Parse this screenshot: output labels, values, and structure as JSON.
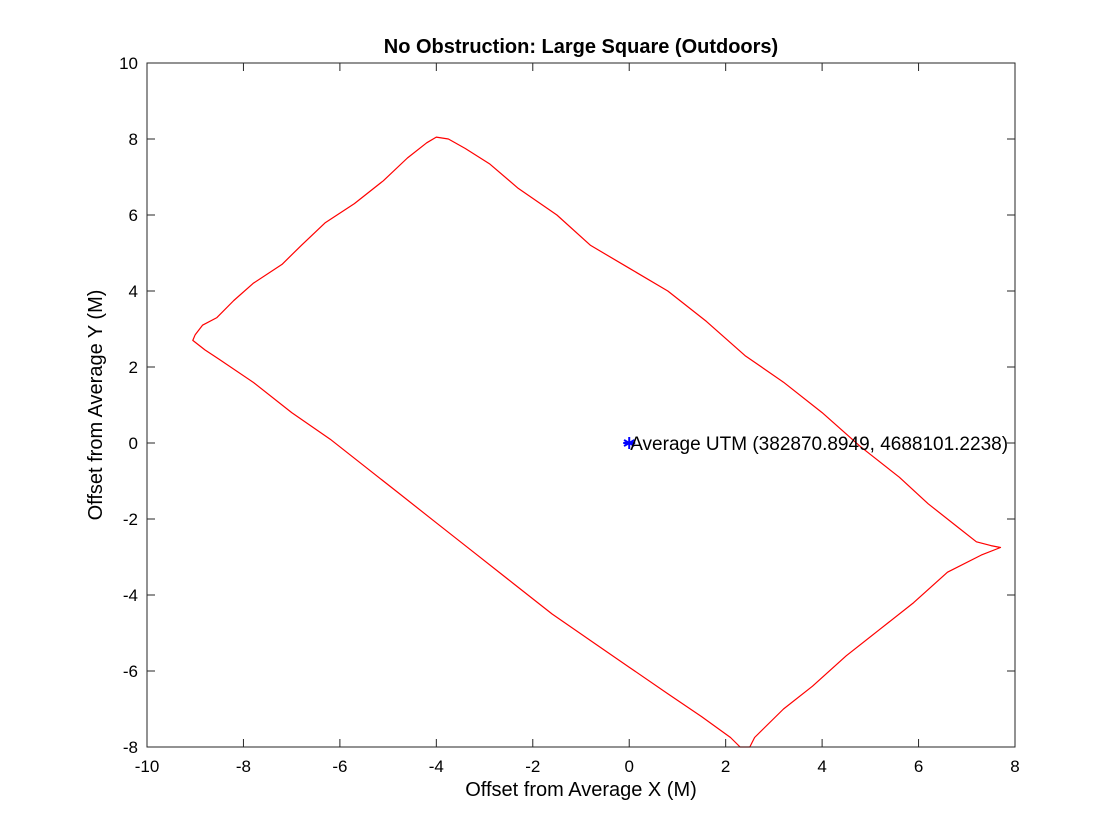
{
  "chart_data": {
    "type": "line",
    "title": "No Obstruction: Large Square (Outdoors)",
    "xlabel": "Offset from Average X (M)",
    "ylabel": "Offset from Average Y (M)",
    "xlim": [
      -10,
      8
    ],
    "ylim": [
      -8,
      10
    ],
    "xticks": [
      -10,
      -8,
      -6,
      -4,
      -2,
      0,
      2,
      4,
      6,
      8
    ],
    "yticks": [
      -8,
      -6,
      -4,
      -2,
      0,
      2,
      4,
      6,
      8,
      10
    ],
    "grid": false,
    "series": [
      {
        "color": "#ff0000",
        "points": [
          [
            -9.0,
            2.85
          ],
          [
            -8.85,
            3.1
          ],
          [
            -8.55,
            3.3
          ],
          [
            -8.2,
            3.75
          ],
          [
            -7.8,
            4.2
          ],
          [
            -7.2,
            4.7
          ],
          [
            -6.8,
            5.2
          ],
          [
            -6.3,
            5.8
          ],
          [
            -5.7,
            6.3
          ],
          [
            -5.1,
            6.9
          ],
          [
            -4.6,
            7.5
          ],
          [
            -4.2,
            7.9
          ],
          [
            -4.0,
            8.05
          ],
          [
            -3.75,
            8.0
          ],
          [
            -3.4,
            7.75
          ],
          [
            -2.9,
            7.35
          ],
          [
            -2.3,
            6.7
          ],
          [
            -1.5,
            6.0
          ],
          [
            -0.8,
            5.2
          ],
          [
            0.0,
            4.6
          ],
          [
            0.8,
            4.0
          ],
          [
            1.6,
            3.2
          ],
          [
            2.4,
            2.3
          ],
          [
            3.2,
            1.6
          ],
          [
            4.0,
            0.8
          ],
          [
            4.8,
            -0.1
          ],
          [
            5.6,
            -0.9
          ],
          [
            6.2,
            -1.6
          ],
          [
            6.8,
            -2.2
          ],
          [
            7.2,
            -2.6
          ],
          [
            7.5,
            -2.7
          ],
          [
            7.7,
            -2.75
          ],
          [
            7.3,
            -2.95
          ],
          [
            6.6,
            -3.4
          ],
          [
            5.9,
            -4.2
          ],
          [
            5.2,
            -4.9
          ],
          [
            4.5,
            -5.6
          ],
          [
            3.8,
            -6.4
          ],
          [
            3.2,
            -7.0
          ],
          [
            2.8,
            -7.5
          ],
          [
            2.6,
            -7.75
          ],
          [
            2.5,
            -8.0
          ],
          [
            2.3,
            -8.0
          ],
          [
            2.1,
            -7.75
          ],
          [
            1.5,
            -7.2
          ],
          [
            0.8,
            -6.6
          ],
          [
            0.0,
            -5.9
          ],
          [
            -0.8,
            -5.2
          ],
          [
            -1.6,
            -4.5
          ],
          [
            -2.4,
            -3.7
          ],
          [
            -3.2,
            -2.9
          ],
          [
            -4.0,
            -2.1
          ],
          [
            -4.8,
            -1.3
          ],
          [
            -5.5,
            -0.6
          ],
          [
            -6.2,
            0.1
          ],
          [
            -7.0,
            0.8
          ],
          [
            -7.8,
            1.6
          ],
          [
            -8.5,
            2.2
          ],
          [
            -8.8,
            2.45
          ],
          [
            -9.05,
            2.7
          ],
          [
            -9.0,
            2.85
          ]
        ]
      }
    ],
    "markers": [
      {
        "x": 0,
        "y": 0,
        "symbol": "*",
        "color": "#0000ff",
        "label": "Average UTM (382870.8949, 4688101.2238)"
      }
    ]
  }
}
